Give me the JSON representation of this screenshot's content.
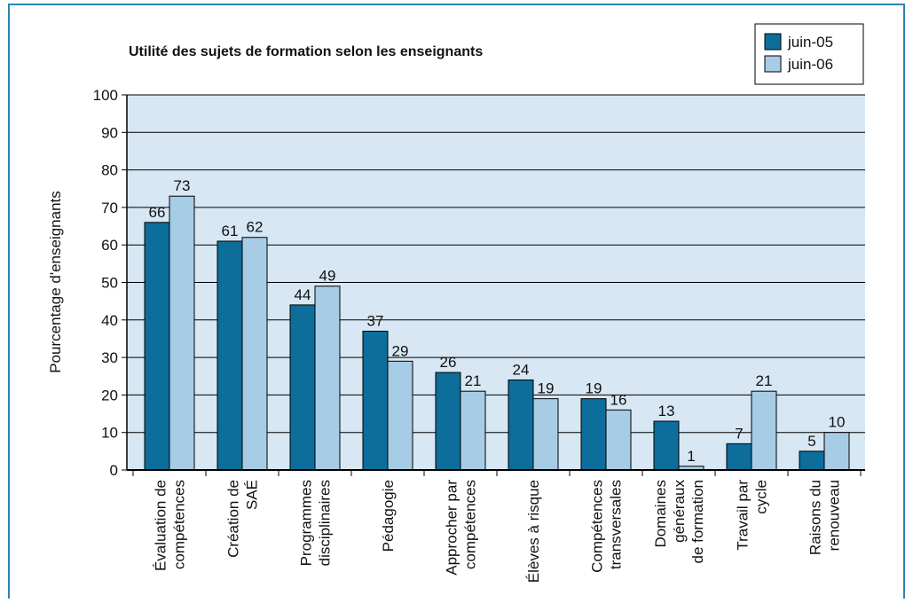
{
  "chart_data": {
    "type": "bar",
    "title": "Utilité des sujets de formation selon les enseignants",
    "y_label": "Pourcentage d'enseignants",
    "categories": [
      "Évaluation de\ncompétences",
      "Création de\nSAÉ",
      "Programmes\ndisciplinaires",
      "Pédagogie",
      "Approcher par\ncompétences",
      "Élèves à risque",
      "Compétences\ntransversales",
      "Domaines\ngénéraux\nde formation",
      "Travail par\ncycle",
      "Raisons du\nrenouveau"
    ],
    "series": [
      {
        "name": "juin-05",
        "color": "#0d6d9b",
        "values": [
          66,
          61,
          44,
          37,
          26,
          24,
          19,
          13,
          7,
          5
        ]
      },
      {
        "name": "juin-06",
        "color": "#a7cce5",
        "values": [
          73,
          62,
          49,
          29,
          21,
          19,
          16,
          1,
          21,
          10
        ]
      }
    ],
    "ylim": [
      0,
      100
    ],
    "yticks": [
      0,
      10,
      20,
      30,
      40,
      50,
      60,
      70,
      80,
      90,
      100
    ],
    "grid": true,
    "legend": "top-right"
  }
}
